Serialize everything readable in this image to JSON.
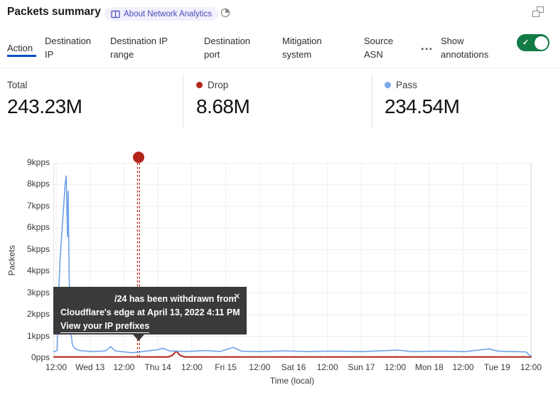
{
  "header": {
    "title": "Packets summary",
    "about_badge_label": "About Network Analytics"
  },
  "tabs": {
    "items": [
      {
        "label": "Action",
        "active": true
      },
      {
        "label": "Destination IP",
        "active": false
      },
      {
        "label": "Destination IP range",
        "active": false
      },
      {
        "label": "Destination port",
        "active": false
      },
      {
        "label": "Mitigation system",
        "active": false
      },
      {
        "label": "Source ASN",
        "active": false
      }
    ],
    "more_label": "...",
    "show_annotations_label": "Show annotations",
    "annotations_toggle_on": true,
    "active_underline_color": "#0051c3",
    "toggle_color": "#117a45",
    "toggle_check": "✓"
  },
  "stats": {
    "cards": [
      {
        "label": "Total",
        "value": "243.23M",
        "dot_color": null
      },
      {
        "label": "Drop",
        "value": "8.68M",
        "dot_color": "#b2271d"
      },
      {
        "label": "Pass",
        "value": "234.54M",
        "dot_color": "#78a9e8"
      }
    ]
  },
  "tooltip": {
    "line1": "/24 has been withdrawn from",
    "line2": "Cloudflare's edge at April 13, 2022 4:11 PM",
    "link_label": "View your IP prefixes",
    "close": "✕"
  },
  "chart_data": {
    "type": "line",
    "xlabel": "Time (local)",
    "ylabel": "Packets",
    "unit": "kpps",
    "ylim": [
      0,
      9
    ],
    "grid": true,
    "legend_position": "stats-row-above-chart",
    "x_tick_labels": [
      "12:00",
      "Wed 13",
      "12:00",
      "Thu 14",
      "12:00",
      "Fri 15",
      "12:00",
      "Sat 16",
      "12:00",
      "Sun 17",
      "12:00",
      "Mon 18",
      "12:00",
      "Tue 19",
      "12:00"
    ],
    "y_tick_labels": [
      "0pps",
      "1kpps",
      "2kpps",
      "3kpps",
      "4kpps",
      "5kpps",
      "6kpps",
      "7kpps",
      "8kpps",
      "9kpps"
    ],
    "annotation": {
      "x_frac": 0.178,
      "time": "April 13, 2022 4:11 PM",
      "label": "/24 has been withdrawn from Cloudflare's edge at April 13, 2022 4:11 PM",
      "color": "#b5241b",
      "style": "double-dashed-vertical-line-with-dot"
    },
    "series": [
      {
        "name": "Drop",
        "color": "#b2271d",
        "points": [
          [
            0.0,
            0.05
          ],
          [
            0.1,
            0.05
          ],
          [
            0.2,
            0.05
          ],
          [
            0.24,
            0.05
          ],
          [
            0.249,
            0.12
          ],
          [
            0.257,
            0.32
          ],
          [
            0.265,
            0.12
          ],
          [
            0.275,
            0.05
          ],
          [
            0.4,
            0.05
          ],
          [
            0.6,
            0.05
          ],
          [
            0.8,
            0.05
          ],
          [
            1.0,
            0.05
          ]
        ]
      },
      {
        "name": "Pass",
        "color": "#6fa3e6",
        "points": [
          [
            0.0,
            0.28
          ],
          [
            0.008,
            0.35
          ],
          [
            0.01,
            2.2
          ],
          [
            0.014,
            4.5
          ],
          [
            0.02,
            6.5
          ],
          [
            0.025,
            8.1
          ],
          [
            0.027,
            8.4
          ],
          [
            0.0295,
            5.6
          ],
          [
            0.031,
            7.7
          ],
          [
            0.033,
            4.0
          ],
          [
            0.036,
            1.3
          ],
          [
            0.04,
            0.6
          ],
          [
            0.046,
            0.42
          ],
          [
            0.055,
            0.34
          ],
          [
            0.082,
            0.3
          ],
          [
            0.105,
            0.32
          ],
          [
            0.111,
            0.35
          ],
          [
            0.12,
            0.53
          ],
          [
            0.129,
            0.33
          ],
          [
            0.149,
            0.28
          ],
          [
            0.165,
            0.24
          ],
          [
            0.186,
            0.3
          ],
          [
            0.218,
            0.38
          ],
          [
            0.23,
            0.45
          ],
          [
            0.242,
            0.33
          ],
          [
            0.275,
            0.3
          ],
          [
            0.319,
            0.34
          ],
          [
            0.349,
            0.3
          ],
          [
            0.376,
            0.49
          ],
          [
            0.394,
            0.31
          ],
          [
            0.438,
            0.3
          ],
          [
            0.483,
            0.33
          ],
          [
            0.528,
            0.3
          ],
          [
            0.587,
            0.32
          ],
          [
            0.646,
            0.3
          ],
          [
            0.698,
            0.34
          ],
          [
            0.721,
            0.36
          ],
          [
            0.75,
            0.3
          ],
          [
            0.81,
            0.32
          ],
          [
            0.862,
            0.3
          ],
          [
            0.911,
            0.42
          ],
          [
            0.929,
            0.32
          ],
          [
            0.958,
            0.3
          ],
          [
            0.988,
            0.28
          ],
          [
            0.997,
            0.1
          ],
          [
            1.0,
            0.08
          ]
        ]
      }
    ]
  }
}
